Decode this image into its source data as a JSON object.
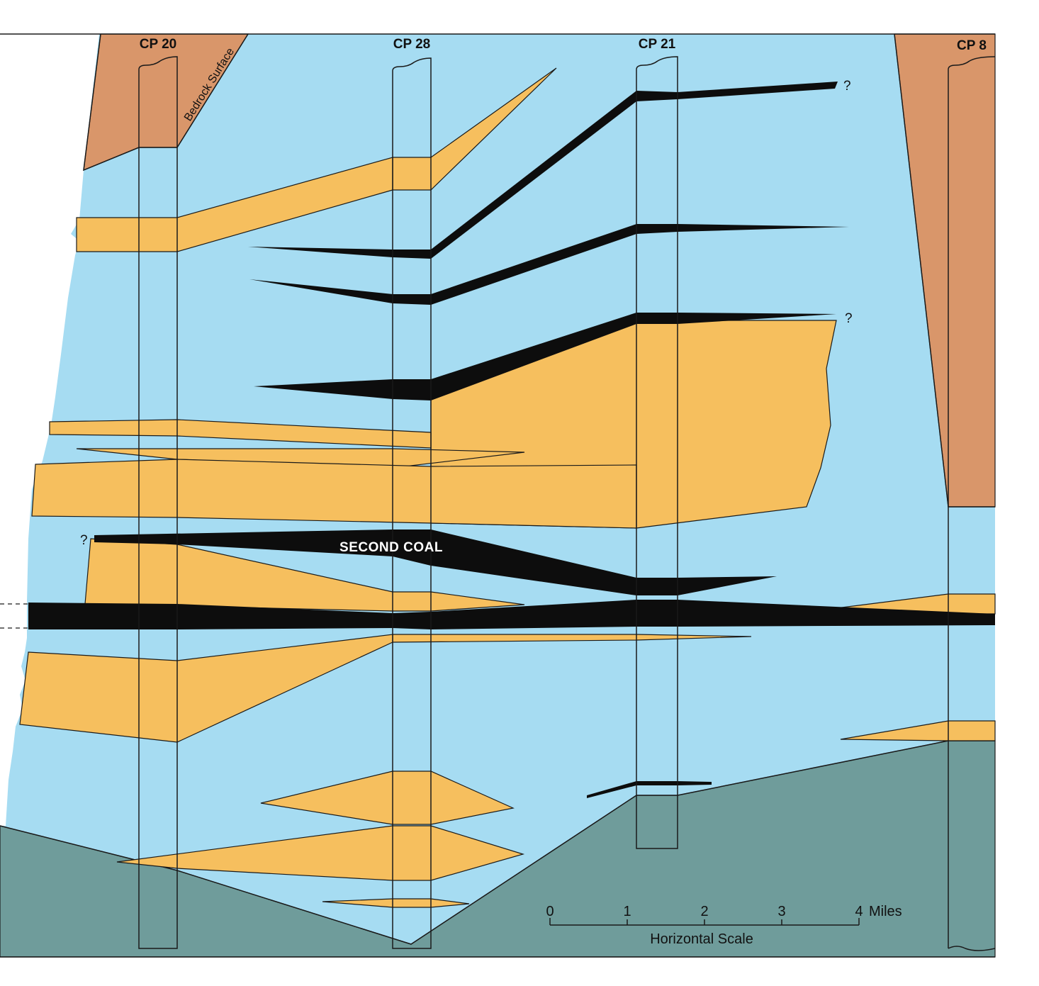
{
  "colors": {
    "shale": "#a6dcf2",
    "sandstone": "#f6bf5e",
    "coal": "#0d0d0d",
    "bedrock_upper": "#d9966a",
    "bedrock_lower": "#6f9c9b",
    "line": "#1a1a1a"
  },
  "wells": [
    {
      "id": "cp20",
      "label": "CP 20"
    },
    {
      "id": "cp28",
      "label": "CP 28"
    },
    {
      "id": "cp21",
      "label": "CP 21"
    },
    {
      "id": "cp8",
      "label": "CP 8"
    }
  ],
  "labels": {
    "bedrock_surface": "Bedrock Surface",
    "second_coal": "SECOND COAL",
    "uncertain_marker": "?"
  },
  "scale": {
    "title": "Horizontal Scale",
    "unit": "Miles",
    "ticks": [
      "0",
      "1",
      "2",
      "3",
      "4"
    ]
  }
}
